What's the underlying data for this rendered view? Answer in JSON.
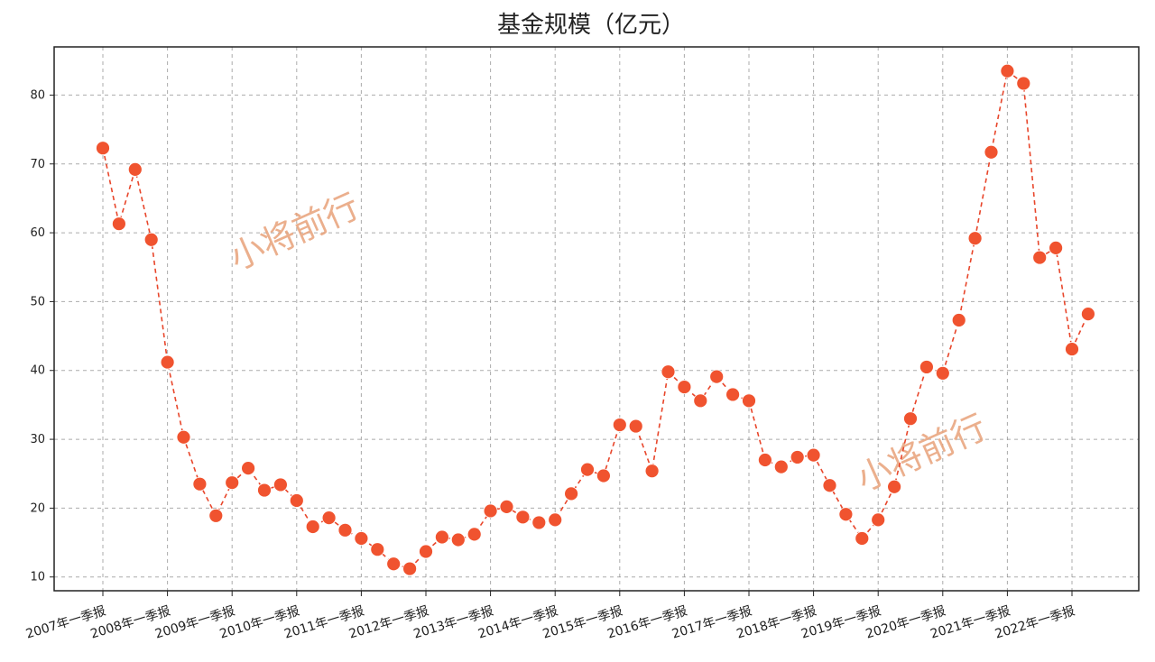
{
  "chart_data": {
    "type": "line",
    "title": "基金规模（亿元）",
    "xlabel": "",
    "ylabel": "",
    "ylim": [
      8,
      87
    ],
    "yticks": [
      10,
      20,
      30,
      40,
      50,
      60,
      70,
      80
    ],
    "grid": true,
    "legend": "none",
    "x_tick_labels": [
      "2007年一季报",
      "2008年一季报",
      "2009年一季报",
      "2010年一季报",
      "2011年一季报",
      "2012年一季报",
      "2013年一季报",
      "2014年一季报",
      "2015年一季报",
      "2016年一季报",
      "2017年一季报",
      "2018年一季报",
      "2019年一季报",
      "2020年一季报",
      "2021年一季报",
      "2022年一季报"
    ],
    "colors": {
      "line": "#e8462b",
      "marker": "#f0532f",
      "grid": "#888888"
    },
    "series": [
      {
        "values": [
          72.3,
          61.3,
          69.2,
          59.0,
          41.2,
          30.3,
          23.5,
          18.9,
          23.7,
          25.8,
          22.6,
          23.4,
          21.1,
          17.3,
          18.6,
          16.8,
          15.6,
          14.0,
          11.9,
          11.2,
          13.7,
          15.8,
          15.4,
          16.2,
          19.6,
          20.2,
          18.7,
          17.9,
          18.3,
          22.1,
          25.6,
          24.7,
          32.1,
          31.9,
          25.4,
          39.8,
          37.6,
          35.6,
          39.1,
          36.5,
          35.6,
          27.0,
          26.0,
          27.4,
          27.7,
          23.3,
          19.1,
          15.6,
          18.3,
          23.1,
          33.0,
          40.5,
          39.6,
          47.3,
          59.2,
          71.7,
          83.5,
          81.7,
          56.4,
          57.8,
          43.1,
          48.2
        ]
      }
    ]
  },
  "watermarks": [
    "小将前行",
    "小将前行"
  ]
}
